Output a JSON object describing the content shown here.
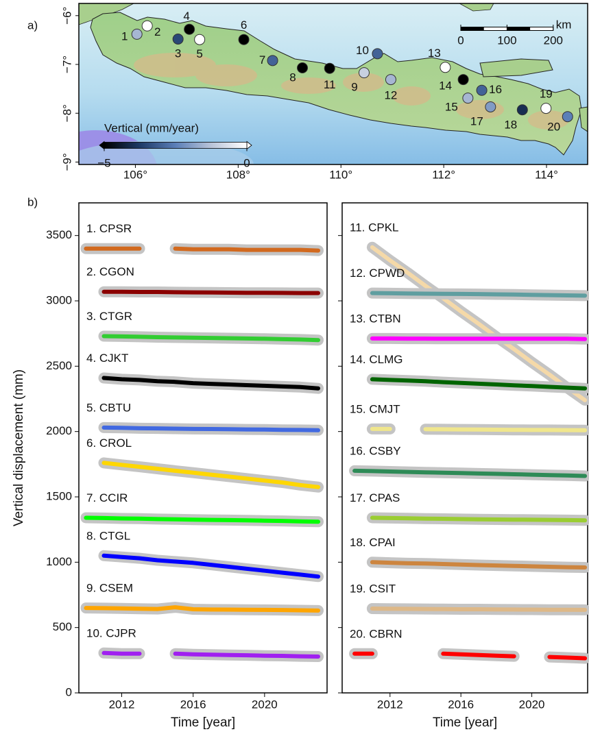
{
  "chart_data": [
    {
      "type": "map",
      "label": "a)",
      "xlim": [
        104.9,
        114.8
      ],
      "ylim": [
        -9.05,
        -5.75
      ],
      "xticks": [
        {
          "value": 106,
          "label": "106°"
        },
        {
          "value": 108,
          "label": "108°"
        },
        {
          "value": 110,
          "label": "110°"
        },
        {
          "value": 112,
          "label": "112°"
        },
        {
          "value": 114,
          "label": "114°"
        }
      ],
      "yticks": [
        {
          "value": -6,
          "label": "−6°"
        },
        {
          "value": -7,
          "label": "−7°"
        },
        {
          "value": -8,
          "label": "−8°"
        },
        {
          "value": -9,
          "label": "−9°"
        }
      ],
      "points": {
        "labels": [
          "1",
          "2",
          "3",
          "4",
          "5",
          "6",
          "7",
          "8",
          "9",
          "10",
          "11",
          "12",
          "13",
          "14",
          "15",
          "16",
          "17",
          "18",
          "19",
          "20"
        ],
        "x": [
          106.03,
          106.23,
          106.83,
          107.05,
          107.25,
          108.11,
          108.67,
          109.25,
          110.45,
          110.71,
          109.78,
          110.97,
          112.03,
          112.38,
          112.47,
          112.74,
          112.91,
          113.53,
          113.99,
          114.41
        ],
        "y": [
          -6.38,
          -6.21,
          -6.48,
          -6.28,
          -6.49,
          -6.49,
          -6.92,
          -7.07,
          -7.17,
          -6.78,
          -7.08,
          -7.31,
          -7.06,
          -7.31,
          -7.69,
          -7.53,
          -7.87,
          -7.93,
          -7.9,
          -8.07
        ],
        "values": [
          -1.5,
          0,
          -3.5,
          -5,
          0,
          -5,
          -3,
          -5,
          -1,
          -3,
          -5,
          -1.5,
          0,
          -5,
          -1.5,
          -3,
          -2,
          -4,
          0,
          -2.5
        ]
      },
      "colorbar": {
        "label": "Vertical (mm/year)",
        "lim": [
          -5,
          0
        ],
        "ticks": [
          {
            "value": -5,
            "label": "−5"
          },
          0
        ],
        "colors": [
          "#000000",
          "#1e3a66",
          "#5b7fb8",
          "#b9c4d8",
          "#ffffff"
        ]
      },
      "scalebar": {
        "unit": "km",
        "ticks": [
          0,
          100,
          200
        ]
      }
    },
    {
      "type": "line",
      "label": "b)",
      "xlabel": "Time [year]",
      "ylabel": "Vertical displacement (mm)",
      "xlim": [
        2009.6,
        2023.5
      ],
      "ylim": [
        0,
        3750
      ],
      "xticks": [
        2012,
        2016,
        2020
      ],
      "yticks": [
        0,
        500,
        1000,
        1500,
        2000,
        2500,
        3000,
        3500
      ],
      "show_ytick_labels": true,
      "x": [
        2010,
        2011,
        2012,
        2013,
        2014,
        2015,
        2016,
        2017,
        2018,
        2019,
        2020,
        2021,
        2022,
        2023
      ],
      "series": [
        {
          "name": "1. CPSR",
          "color": "#d2691e",
          "values": [
            3400,
            3400,
            3400,
            3400,
            null,
            3400,
            3395,
            3395,
            3395,
            3390,
            3390,
            3390,
            3390,
            3385
          ]
        },
        {
          "name": "2. CGON",
          "color": "#8b0000",
          "values": [
            null,
            3070,
            3070,
            3068,
            3068,
            3066,
            3065,
            3064,
            3063,
            3062,
            3062,
            3061,
            3060,
            3060
          ]
        },
        {
          "name": "3. CTGR",
          "color": "#32cd32",
          "values": [
            null,
            2730,
            2728,
            2725,
            2722,
            2720,
            2718,
            2716,
            2714,
            2712,
            2710,
            2707,
            2704,
            2700
          ]
        },
        {
          "name": "4. CJKT",
          "color": "#000000",
          "values": [
            null,
            2410,
            2400,
            2395,
            2385,
            2380,
            2370,
            2365,
            2360,
            2355,
            2350,
            2345,
            2340,
            2330
          ]
        },
        {
          "name": "5. CBTU",
          "color": "#4169e1",
          "values": [
            null,
            2030,
            2028,
            2025,
            2024,
            2022,
            2020,
            2019,
            2018,
            2016,
            2015,
            2013,
            2012,
            2010
          ]
        },
        {
          "name": "6. CROL",
          "color": "#ffd700",
          "values": [
            null,
            1760,
            1745,
            1730,
            1715,
            1700,
            1685,
            1670,
            1655,
            1640,
            1625,
            1610,
            1590,
            1575
          ]
        },
        {
          "name": "7. CCIR",
          "color": "#00ff00",
          "values": [
            1340,
            1338,
            1335,
            1333,
            1330,
            1328,
            1326,
            1324,
            1322,
            1320,
            1318,
            1316,
            1313,
            1310
          ]
        },
        {
          "name": "8. CTGL",
          "color": "#0000ff",
          "values": [
            null,
            1050,
            1040,
            1030,
            1015,
            1005,
            995,
            980,
            965,
            950,
            935,
            920,
            905,
            890
          ]
        },
        {
          "name": "9. CSEM",
          "color": "#ffa500",
          "values": [
            650,
            648,
            646,
            644,
            642,
            655,
            640,
            638,
            637,
            636,
            635,
            634,
            632,
            630
          ]
        },
        {
          "name": "10. CJPR",
          "color": "#a020f0",
          "values": [
            null,
            305,
            300,
            300,
            null,
            300,
            295,
            292,
            290,
            288,
            285,
            283,
            280,
            278
          ]
        }
      ]
    },
    {
      "type": "line",
      "xlabel": "Time [year]",
      "xlim": [
        2009.3,
        2023.15
      ],
      "ylim": [
        0,
        3750
      ],
      "xticks": [
        2012,
        2016,
        2020
      ],
      "yticks": [
        0,
        500,
        1000,
        1500,
        2000,
        2500,
        3000,
        3500
      ],
      "show_ytick_labels": false,
      "x": [
        2010,
        2011,
        2012,
        2013,
        2014,
        2015,
        2016,
        2017,
        2018,
        2019,
        2020,
        2021,
        2022,
        2023
      ],
      "series": [
        {
          "name": "11. CPKL",
          "color": "#f5d9a8",
          "values": [
            null,
            3410,
            3310,
            3215,
            3115,
            3020,
            2920,
            2825,
            2725,
            2630,
            2530,
            2435,
            2335,
            2240
          ]
        },
        {
          "name": "12. CPWD",
          "color": "#5f9ea0",
          "values": [
            null,
            3060,
            3058,
            3056,
            3055,
            3054,
            3053,
            3052,
            3050,
            3048,
            3046,
            3044,
            3042,
            3040
          ]
        },
        {
          "name": "13. CTBN",
          "color": "#ff00ff",
          "values": [
            null,
            2712,
            2712,
            2711,
            2711,
            2710,
            2710,
            2710,
            2710,
            2710,
            2710,
            2710,
            2710,
            2708
          ]
        },
        {
          "name": "14. CLMG",
          "color": "#006400",
          "values": [
            null,
            2400,
            2395,
            2390,
            2385,
            2378,
            2372,
            2366,
            2360,
            2354,
            2348,
            2342,
            2336,
            2330
          ]
        },
        {
          "name": "15. CMJT",
          "color": "#f0e68c",
          "values": [
            null,
            2020,
            2020,
            null,
            2018,
            2017,
            2016,
            2015,
            2014,
            2013,
            2012,
            2012,
            2011,
            2010
          ]
        },
        {
          "name": "16. CSBY",
          "color": "#2e8b57",
          "values": [
            1700,
            1697,
            1694,
            1691,
            1688,
            1685,
            1682,
            1679,
            1676,
            1673,
            1670,
            1667,
            1664,
            1660
          ]
        },
        {
          "name": "17. CPAS",
          "color": "#9acd32",
          "values": [
            null,
            1340,
            1338,
            1336,
            1334,
            1332,
            1330,
            1328,
            1327,
            1326,
            1325,
            1324,
            1322,
            1320
          ]
        },
        {
          "name": "18. CPAI",
          "color": "#cd853f",
          "values": [
            null,
            1000,
            996,
            992,
            990,
            986,
            982,
            978,
            975,
            972,
            968,
            965,
            962,
            960
          ]
        },
        {
          "name": "19. CSIT",
          "color": "#deb887",
          "values": [
            null,
            645,
            644,
            643,
            642,
            641,
            640,
            640,
            639,
            638,
            637,
            636,
            636,
            635
          ]
        },
        {
          "name": "20. CBRN",
          "color": "#ff0000",
          "values": [
            300,
            300,
            null,
            null,
            null,
            300,
            295,
            290,
            285,
            280,
            null,
            275,
            270,
            265
          ]
        }
      ]
    }
  ]
}
